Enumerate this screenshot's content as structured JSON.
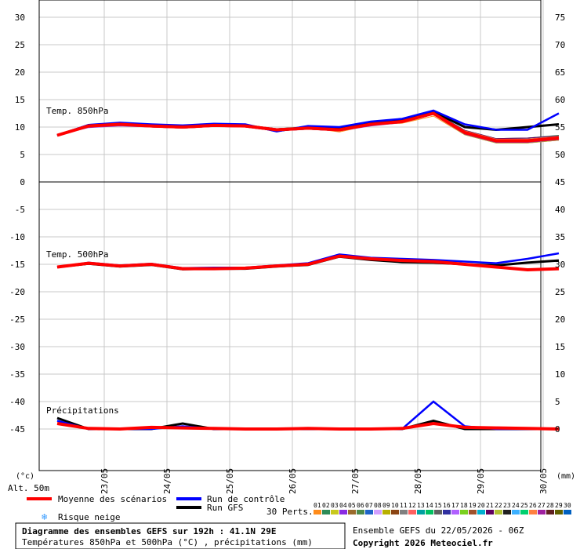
{
  "header": {
    "title": "Diagramme des ensembles GEFS sur 192h : 41.1N 29E",
    "subtitle": "Températures 850hPa et 500hPa (°C) , précipitations (mm)",
    "run_info": "Ensemble GEFS du 22/05/2026 - 06Z",
    "copyright": "Copyright 2026 Meteociel.fr"
  },
  "legend": {
    "mean": "Moyenne des scénarios",
    "control": "Run de contrôle",
    "gfs": "Run GFS",
    "snow": "Risque neige",
    "perts_label": "30 Perts.",
    "perts": [
      "01",
      "02",
      "03",
      "04",
      "05",
      "06",
      "07",
      "08",
      "09",
      "10",
      "11",
      "12",
      "13",
      "14",
      "15",
      "16",
      "17",
      "18",
      "19",
      "20",
      "21",
      "22",
      "23",
      "24",
      "25",
      "26",
      "27",
      "28",
      "29",
      "30"
    ]
  },
  "axes": {
    "left_unit": "(°c)",
    "right_unit": "(mm)",
    "altitude": "Alt. 50m",
    "left_ticks": [
      30,
      25,
      20,
      15,
      10,
      5,
      0,
      -5,
      -10,
      -15,
      -20,
      -25,
      -30,
      -35,
      -40,
      -45
    ],
    "right_ticks": [
      75,
      70,
      65,
      60,
      55,
      50,
      45,
      40,
      35,
      30,
      25,
      20,
      15,
      10,
      5,
      0
    ],
    "x_ticks": [
      "23/05",
      "24/05",
      "25/05",
      "26/05",
      "27/05",
      "28/05",
      "29/05",
      "30/05"
    ]
  },
  "colors": {
    "mean": "#ff0000",
    "control": "#0000ff",
    "gfs": "#000000",
    "grid": "#c8c8c8",
    "perts": [
      "#ff8c1a",
      "#2e8b57",
      "#c8c81e",
      "#8a2be2",
      "#9a6b2b",
      "#4a8a4a",
      "#1e64c8",
      "#d2a0ff",
      "#b8b000",
      "#8b4513",
      "#808080",
      "#ff6060",
      "#00a0a0",
      "#00c060",
      "#606060",
      "#3030a0",
      "#b060ff",
      "#7ad01e",
      "#a0522d",
      "#00b0d0",
      "#600060",
      "#b0c030",
      "#202020",
      "#3cb0ff",
      "#00d070",
      "#ff8040",
      "#a020a0",
      "#602020",
      "#606000",
      "#0060c0"
    ]
  },
  "chart_data": [
    {
      "type": "line",
      "panel_label": "Temp. 850hPa",
      "unit": "°C",
      "x": [
        0,
        0.5,
        1,
        1.5,
        2,
        2.5,
        3,
        3.5,
        4,
        4.5,
        5,
        5.5,
        6,
        6.5,
        7,
        7.5,
        8
      ],
      "ylim": [
        0,
        30
      ],
      "series": [
        {
          "name": "Moyenne des scénarios",
          "values": [
            8.5,
            10.2,
            10.5,
            10.2,
            10,
            10.3,
            10.2,
            9.5,
            9.8,
            9.5,
            10.5,
            11,
            12.5,
            9,
            7.5,
            7.5,
            8
          ]
        },
        {
          "name": "Run de contrôle",
          "values": [
            8.5,
            10.4,
            10.8,
            10.5,
            10.3,
            10.6,
            10.5,
            9.2,
            10.2,
            10,
            11,
            11.5,
            13,
            10.5,
            9.5,
            9.5,
            12.5
          ]
        },
        {
          "name": "Run GFS",
          "values": [
            8.5,
            10.3,
            10.7,
            10.4,
            10.1,
            10.4,
            10.4,
            9.3,
            10,
            9.7,
            10.8,
            11.2,
            12.8,
            10,
            9.5,
            10,
            10.5
          ]
        }
      ],
      "perturbation_values": [
        [
          8.5,
          10.0,
          10.3,
          10.2,
          10.1,
          10.5,
          10.0,
          9.3,
          9.9,
          9.1,
          10.4,
          10.7,
          12.0,
          8.6,
          7.1,
          7.1,
          7.6
        ],
        [
          8.5,
          10.5,
          10.6,
          10.4,
          10.3,
          10.6,
          10.4,
          9.7,
          10.1,
          9.8,
          10.8,
          11.3,
          12.8,
          9.4,
          7.9,
          8.0,
          8.5
        ],
        [
          8.5,
          10.2,
          10.8,
          10.4,
          10.1,
          10.4,
          10.5,
          9.6,
          9.9,
          9.7,
          10.6,
          11.2,
          12.6,
          9.0,
          7.5,
          7.6,
          8.1
        ],
        [
          8.5,
          9.9,
          10.2,
          10.0,
          9.8,
          10.1,
          10.0,
          9.3,
          9.6,
          9.3,
          10.2,
          10.8,
          12.3,
          8.8,
          7.4,
          7.3,
          7.8
        ],
        [
          8.5,
          10.2,
          10.5,
          10.2,
          10.0,
          10.3,
          10.2,
          9.5,
          9.8,
          9.5,
          10.5,
          11.0,
          12.5,
          9.0,
          7.5,
          7.5,
          8.0
        ],
        [
          8.5,
          10.4,
          10.7,
          10.4,
          10.2,
          10.5,
          10.4,
          9.7,
          10.0,
          9.7,
          10.7,
          11.2,
          12.7,
          9.3,
          7.8,
          7.8,
          8.3
        ],
        [
          8.5,
          10.0,
          10.3,
          10.0,
          9.8,
          10.1,
          10.0,
          9.3,
          9.6,
          9.3,
          10.3,
          10.8,
          12.3,
          8.7,
          7.2,
          7.2,
          7.7
        ],
        [
          8.5,
          10.3,
          10.6,
          10.3,
          10.1,
          10.4,
          10.3,
          9.6,
          9.9,
          9.6,
          10.6,
          11.1,
          12.6,
          9.2,
          7.7,
          7.7,
          8.2
        ],
        [
          8.5,
          10.1,
          10.4,
          10.1,
          9.9,
          10.2,
          10.1,
          9.4,
          9.7,
          9.4,
          10.4,
          10.9,
          12.4,
          8.8,
          7.3,
          7.3,
          7.8
        ],
        [
          8.5,
          10.2,
          10.5,
          10.2,
          10.0,
          10.3,
          10.2,
          9.5,
          9.8,
          9.5,
          10.5,
          11.0,
          12.5,
          9.0,
          7.5,
          7.5,
          8.0
        ],
        [
          8.5,
          10.4,
          10.7,
          10.4,
          10.2,
          10.5,
          10.4,
          9.7,
          10.0,
          9.7,
          10.7,
          11.2,
          12.7,
          9.4,
          7.9,
          8.0,
          8.4
        ],
        [
          8.5,
          10.0,
          10.3,
          10.0,
          9.8,
          10.1,
          10.0,
          9.3,
          9.6,
          9.3,
          10.3,
          10.8,
          12.3,
          8.6,
          7.1,
          7.1,
          7.6
        ],
        [
          8.5,
          10.3,
          10.6,
          10.3,
          10.1,
          10.4,
          10.3,
          9.6,
          9.9,
          9.6,
          10.6,
          11.1,
          12.6,
          9.1,
          7.6,
          7.6,
          8.1
        ],
        [
          8.5,
          10.1,
          10.4,
          10.1,
          9.9,
          10.2,
          10.1,
          9.4,
          9.7,
          9.4,
          10.4,
          10.9,
          12.4,
          8.9,
          7.4,
          7.4,
          7.9
        ],
        [
          8.5,
          10.2,
          10.5,
          10.2,
          10.0,
          10.3,
          10.2,
          9.5,
          9.8,
          9.5,
          10.5,
          11.0,
          12.5,
          9.0,
          7.5,
          7.5,
          8.0
        ],
        [
          8.5,
          10.4,
          10.7,
          10.4,
          10.2,
          10.5,
          10.4,
          9.7,
          10.0,
          9.7,
          10.7,
          11.2,
          12.7,
          9.3,
          7.8,
          7.8,
          8.3
        ],
        [
          8.5,
          10.0,
          10.3,
          10.0,
          9.8,
          10.1,
          10.0,
          9.3,
          9.6,
          9.3,
          10.3,
          10.8,
          12.3,
          8.7,
          7.2,
          7.2,
          7.7
        ],
        [
          8.5,
          10.3,
          10.6,
          10.3,
          10.1,
          10.4,
          10.3,
          9.6,
          9.9,
          9.6,
          10.6,
          11.1,
          12.6,
          9.2,
          7.7,
          7.7,
          8.2
        ],
        [
          8.5,
          10.1,
          10.4,
          10.1,
          9.9,
          10.2,
          10.1,
          9.4,
          9.7,
          9.4,
          10.4,
          10.9,
          12.4,
          8.8,
          7.3,
          7.3,
          7.8
        ],
        [
          8.5,
          10.2,
          10.5,
          10.2,
          10.0,
          10.3,
          10.2,
          9.5,
          9.8,
          9.5,
          10.5,
          11.0,
          12.5,
          9.0,
          7.5,
          7.5,
          8.0
        ],
        [
          8.5,
          10.4,
          10.7,
          10.4,
          10.2,
          10.5,
          10.4,
          9.7,
          10.0,
          9.7,
          10.7,
          11.2,
          12.7,
          9.4,
          7.9,
          8.0,
          8.4
        ],
        [
          8.5,
          10.0,
          10.3,
          10.0,
          9.8,
          10.1,
          10.0,
          9.3,
          9.6,
          9.3,
          10.3,
          10.8,
          12.3,
          8.6,
          7.1,
          7.1,
          7.6
        ],
        [
          8.5,
          10.3,
          10.6,
          10.3,
          10.1,
          10.4,
          10.3,
          9.6,
          9.9,
          9.6,
          10.6,
          11.1,
          12.6,
          9.1,
          7.6,
          7.6,
          8.1
        ],
        [
          8.5,
          10.1,
          10.4,
          10.1,
          9.9,
          10.2,
          10.1,
          9.4,
          9.7,
          9.4,
          10.4,
          10.9,
          12.4,
          8.9,
          7.4,
          7.4,
          7.9
        ],
        [
          8.5,
          10.2,
          10.5,
          10.2,
          10.0,
          10.3,
          10.2,
          9.5,
          9.8,
          9.5,
          10.5,
          11.0,
          12.5,
          9.0,
          7.5,
          7.5,
          8.0
        ],
        [
          8.5,
          10.4,
          10.7,
          10.4,
          10.2,
          10.5,
          10.4,
          9.7,
          10.0,
          9.7,
          10.7,
          11.2,
          12.7,
          9.3,
          7.8,
          7.8,
          8.3
        ],
        [
          8.5,
          10.0,
          10.3,
          10.0,
          9.8,
          10.1,
          10.0,
          9.3,
          9.6,
          9.3,
          10.3,
          10.8,
          12.3,
          8.7,
          7.2,
          7.2,
          7.7
        ],
        [
          8.5,
          10.3,
          10.6,
          10.3,
          10.1,
          10.4,
          10.3,
          9.6,
          9.9,
          9.6,
          10.6,
          11.1,
          12.6,
          9.2,
          7.7,
          7.7,
          8.2
        ],
        [
          8.5,
          10.1,
          10.4,
          10.1,
          9.9,
          10.2,
          10.1,
          9.4,
          9.7,
          9.4,
          10.4,
          10.9,
          12.4,
          8.8,
          7.3,
          7.3,
          7.8
        ],
        [
          8.5,
          10.2,
          10.5,
          10.2,
          10.0,
          10.3,
          10.2,
          9.5,
          9.8,
          9.5,
          10.5,
          11.0,
          12.5,
          9.0,
          7.5,
          7.5,
          8.0
        ]
      ]
    },
    {
      "type": "line",
      "panel_label": "Temp. 500hPa",
      "unit": "°C",
      "x": [
        0,
        0.5,
        1,
        1.5,
        2,
        2.5,
        3,
        3.5,
        4,
        4.5,
        5,
        5.5,
        6,
        6.5,
        7,
        7.5,
        8
      ],
      "ylim": [
        -45,
        0
      ],
      "series": [
        {
          "name": "Moyenne des scénarios",
          "values": [
            -15.5,
            -14.8,
            -15.3,
            -15,
            -15.8,
            -15.8,
            -15.7,
            -15.3,
            -15,
            -13.5,
            -14,
            -14.3,
            -14.5,
            -15,
            -15.5,
            -16,
            -15.8
          ]
        },
        {
          "name": "Run de contrôle",
          "values": [
            -15.5,
            -14.7,
            -15.2,
            -14.9,
            -15.7,
            -15.6,
            -15.6,
            -15.2,
            -14.8,
            -13.2,
            -13.8,
            -14,
            -14.2,
            -14.5,
            -14.8,
            -14,
            -13
          ]
        },
        {
          "name": "Run GFS",
          "values": [
            -15.5,
            -14.9,
            -15.4,
            -15.1,
            -15.9,
            -15.8,
            -15.8,
            -15.4,
            -15.1,
            -13.6,
            -14.2,
            -14.6,
            -14.7,
            -15,
            -15.2,
            -14.7,
            -14.3
          ]
        }
      ]
    },
    {
      "type": "line",
      "panel_label": "Précipitations",
      "unit": "mm",
      "x": [
        0,
        0.5,
        1,
        1.5,
        2,
        2.5,
        3,
        3.5,
        4,
        4.5,
        5,
        5.5,
        6,
        6.5,
        7,
        7.5,
        8
      ],
      "ylim": [
        0,
        75
      ],
      "series": [
        {
          "name": "Moyenne des scénarios",
          "values": [
            1,
            0.1,
            0,
            0.3,
            0.2,
            0.1,
            0,
            0,
            0.1,
            0,
            0,
            0.1,
            1,
            0.3,
            0.2,
            0.1,
            0
          ]
        },
        {
          "name": "Run de contrôle",
          "values": [
            1.5,
            0,
            0,
            0,
            0.5,
            0,
            0,
            0,
            0,
            0,
            0,
            0,
            5,
            0.5,
            0,
            0,
            0
          ]
        },
        {
          "name": "Run GFS",
          "values": [
            2,
            0,
            0,
            0,
            1,
            0,
            0,
            0,
            0,
            0,
            0,
            0,
            1.5,
            0,
            0,
            0,
            0
          ]
        }
      ]
    }
  ]
}
